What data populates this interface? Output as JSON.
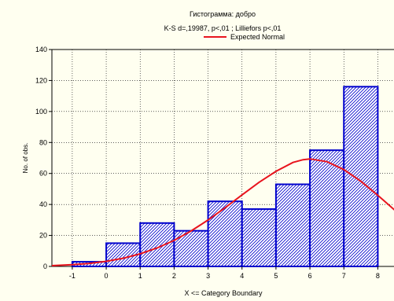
{
  "chart_data": {
    "type": "bar",
    "title": "Гистограмма: добро",
    "subtitle": "K-S d=,19987, p<,01 ; Lilliefors p<,01",
    "legend": [
      {
        "name": "Expected Normal",
        "color": "#e8141e",
        "marker": "line"
      }
    ],
    "legend_placement": "top-center",
    "xlabel": "X <= Category Boundary",
    "ylabel": "No. of obs.",
    "x_ticks": [
      "-1",
      "0",
      "1",
      "2",
      "3",
      "4",
      "5",
      "6",
      "7",
      "8"
    ],
    "y_ticks": [
      "0",
      "20",
      "40",
      "60",
      "80",
      "100",
      "120",
      "140"
    ],
    "ylim": [
      0,
      140
    ],
    "xlim": [
      -1.6,
      8.5
    ],
    "grid": true,
    "bins": [
      {
        "from": -1,
        "to": 0,
        "value": 3
      },
      {
        "from": 0,
        "to": 1,
        "value": 15
      },
      {
        "from": 1,
        "to": 2,
        "value": 28
      },
      {
        "from": 2,
        "to": 3,
        "value": 23
      },
      {
        "from": 3,
        "to": 4,
        "value": 42
      },
      {
        "from": 4,
        "to": 5,
        "value": 37
      },
      {
        "from": 5,
        "to": 6,
        "value": 53
      },
      {
        "from": 6,
        "to": 7,
        "value": 75
      },
      {
        "from": 7,
        "to": 8,
        "value": 116
      }
    ],
    "expected_normal": {
      "x": [
        -1.6,
        -1,
        -0.5,
        0,
        0.5,
        1,
        1.5,
        2,
        2.5,
        3,
        3.5,
        4,
        4.5,
        5,
        5.5,
        5.8,
        6,
        6.5,
        7,
        7.5,
        8,
        8.5
      ],
      "y": [
        0.5,
        1.1,
        1.9,
        3.3,
        5.3,
        8.1,
        11.9,
        16.8,
        22.9,
        30,
        37.9,
        46.1,
        54.2,
        61.4,
        67.1,
        68.9,
        69.4,
        67.6,
        62.5,
        55,
        45.9,
        36.3
      ]
    },
    "colors": {
      "bar_fill": "#ffffff",
      "bar_edge": "#0000cc",
      "bar_hatch": "#0000cc",
      "curve": "#e8141e",
      "grid": "#000000",
      "background": "#fffff0"
    }
  }
}
